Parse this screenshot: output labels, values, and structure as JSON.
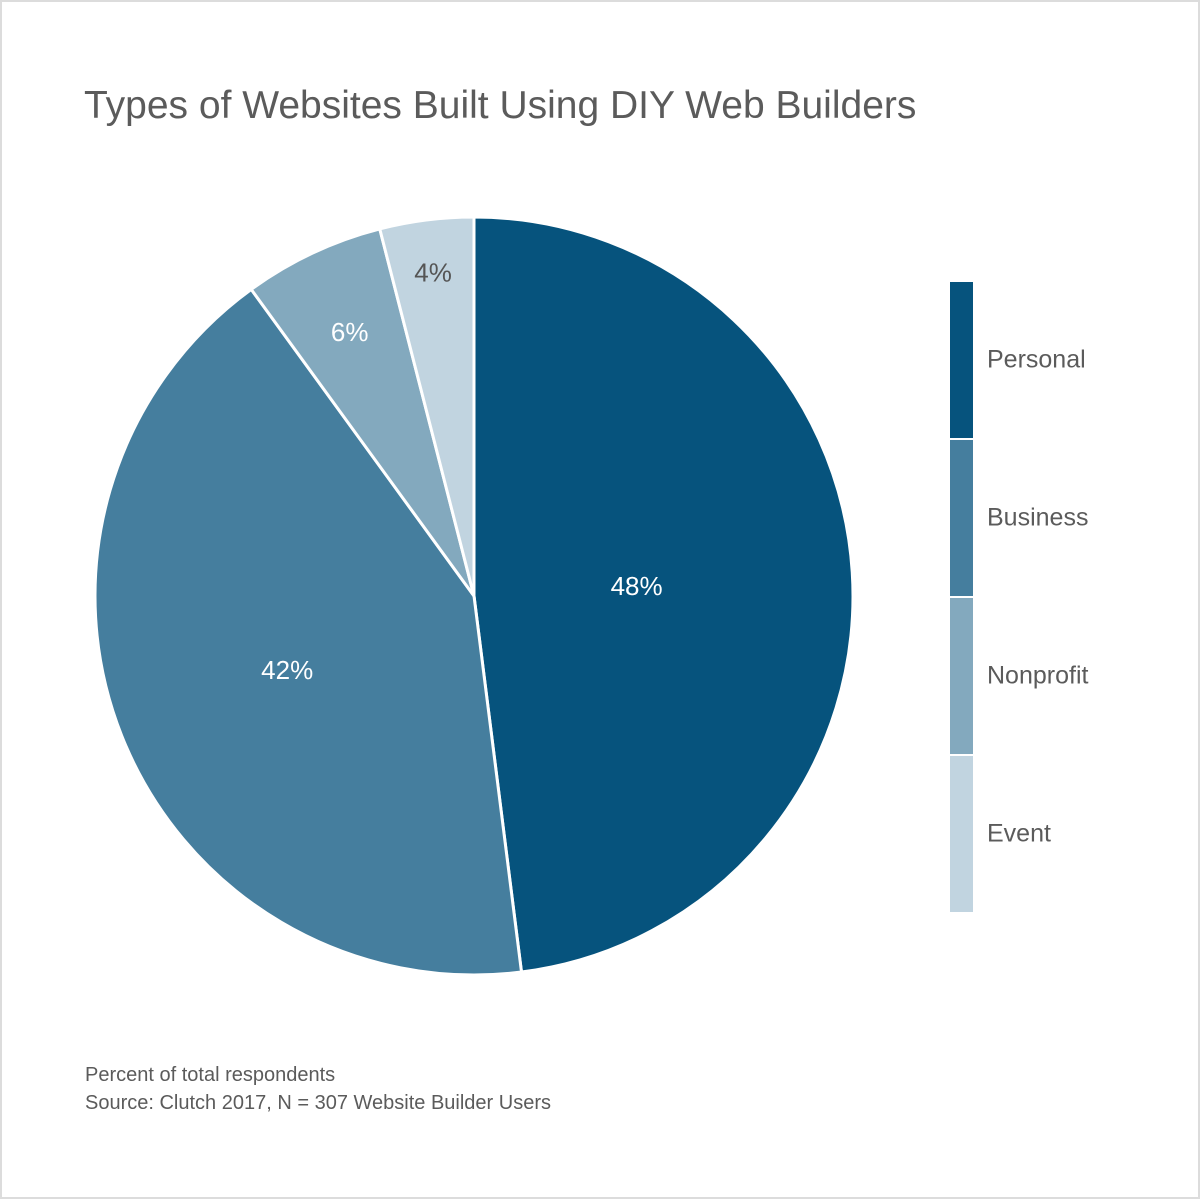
{
  "chart_data": {
    "type": "pie",
    "title": "Types of Websites Built Using DIY Web Builders",
    "categories": [
      "Personal",
      "Business",
      "Nonprofit",
      "Event"
    ],
    "values": [
      48,
      42,
      6,
      4
    ],
    "value_labels": [
      "48%",
      "42%",
      "6%",
      "4%"
    ],
    "colors": [
      "#06537d",
      "#457e9e",
      "#83a9be",
      "#c1d4e0"
    ],
    "label_colors": [
      "#ffffff",
      "#ffffff",
      "#ffffff",
      "#555555"
    ],
    "legend": "right",
    "footnotes": [
      "Percent of total respondents",
      "Source: Clutch 2017, N = 307 Website Builder Users"
    ]
  }
}
